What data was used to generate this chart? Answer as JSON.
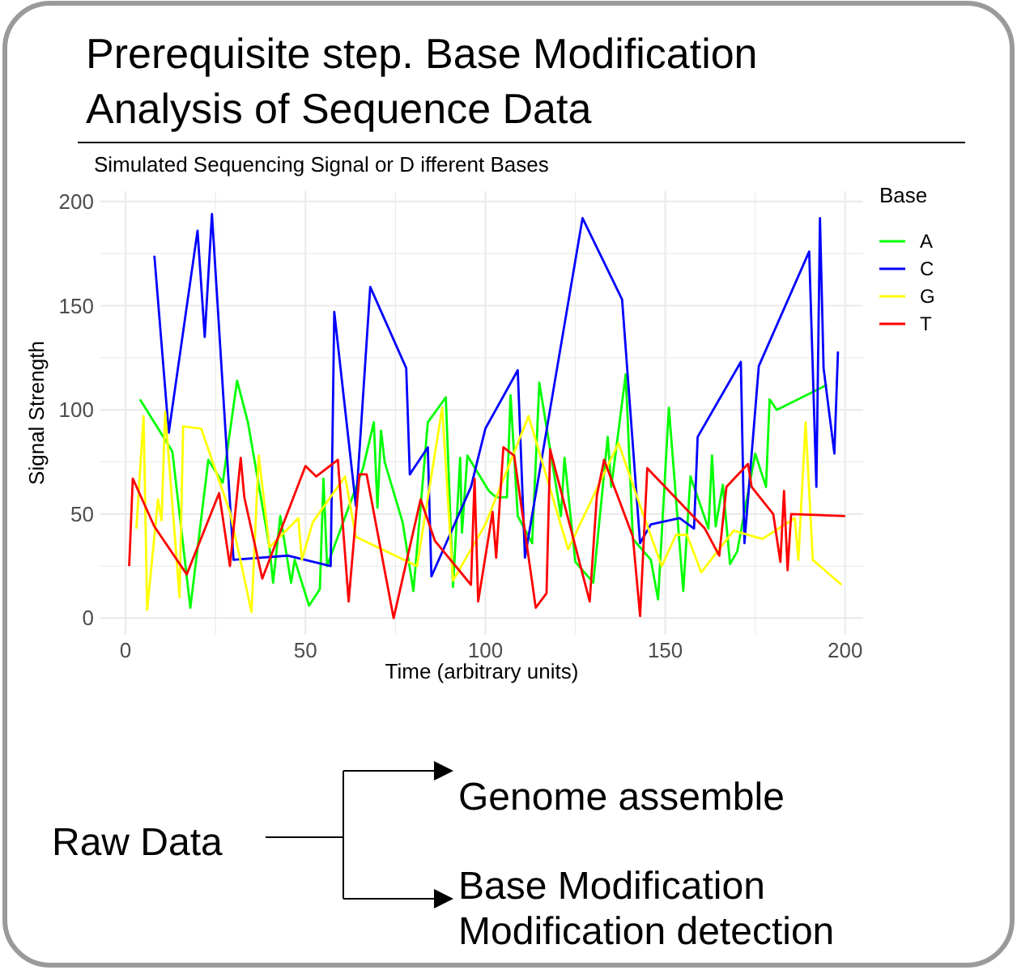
{
  "chart_data": {
    "type": "line",
    "title": "Prerequisite step. Base Modification\nAnalysis of Sequence Data",
    "subtitle": "Simulated Sequencing Signal or D ifferent Bases",
    "xlabel": "Time (arbitrary units)",
    "ylabel": "Signal Strength",
    "legend_title": "Base",
    "legend": "right",
    "grid": true,
    "xlim": [
      -7,
      205
    ],
    "ylim": [
      -8,
      205
    ],
    "xticks": [
      0,
      50,
      100,
      150,
      200
    ],
    "yticks": [
      0,
      50,
      100,
      150,
      200
    ],
    "annotations": [
      "Genome assemble",
      "Raw Data",
      "Base Modification",
      "Modification detection"
    ],
    "series": [
      {
        "name": "A",
        "color": "#00ff00",
        "x": [
          4,
          13,
          18,
          23,
          27,
          31,
          34,
          40,
          41,
          43,
          46,
          47,
          51,
          54,
          55,
          56,
          66,
          69,
          70,
          71,
          72,
          77,
          80,
          84,
          89,
          91,
          93,
          93.5,
          95,
          101,
          103,
          106,
          107,
          109,
          113,
          115,
          118,
          121,
          122,
          125,
          130,
          134,
          135,
          139,
          141,
          146,
          148,
          151,
          155,
          157,
          162,
          163,
          164,
          166,
          168,
          170,
          175,
          178,
          179,
          181,
          195
        ],
        "values": [
          105,
          80,
          5,
          76,
          65,
          114,
          94,
          34,
          17,
          49,
          17,
          28,
          6,
          14,
          67,
          25,
          72,
          94,
          53,
          90,
          75,
          46,
          13,
          94,
          106,
          15,
          77,
          41,
          78,
          61,
          58,
          58,
          107,
          49,
          36,
          113,
          81,
          49,
          77,
          27,
          17,
          87,
          63,
          117,
          38,
          28,
          9,
          101,
          13,
          68,
          43,
          78,
          44,
          64,
          26,
          32,
          79,
          63,
          105,
          100,
          112
        ]
      },
      {
        "name": "C",
        "color": "#0000ff",
        "x": [
          8,
          12,
          20,
          22,
          24,
          30,
          45,
          57,
          58,
          64,
          68,
          78,
          79,
          84,
          85,
          96,
          100,
          109,
          111,
          127,
          138,
          143,
          146,
          154,
          158,
          159,
          171,
          172,
          176,
          190,
          192,
          193,
          194,
          197,
          198
        ],
        "values": [
          174,
          89,
          186,
          135,
          194,
          28,
          30,
          25,
          147,
          54,
          159,
          120,
          69,
          82,
          20,
          63,
          91,
          119,
          29,
          192,
          153,
          36,
          45,
          48,
          43,
          87,
          123,
          36,
          121,
          176,
          63,
          192,
          120,
          79,
          128
        ]
      },
      {
        "name": "G",
        "color": "#ffff00",
        "x": [
          3,
          5,
          6,
          9,
          10,
          11,
          15,
          16,
          21,
          29,
          35,
          37,
          40,
          48,
          49,
          52,
          61,
          64,
          81,
          88,
          91,
          100,
          112,
          123,
          137,
          143,
          149,
          153,
          156,
          160,
          169,
          177,
          186,
          187,
          189,
          191,
          199
        ],
        "values": [
          43,
          97,
          4,
          57,
          47,
          99,
          10,
          92,
          91,
          51,
          3,
          78,
          34,
          48,
          28,
          46,
          68,
          39,
          25,
          101,
          18,
          45,
          97,
          33,
          84,
          54,
          25,
          40,
          40,
          22,
          42,
          38,
          48,
          28,
          94,
          28,
          16
        ]
      },
      {
        "name": "T",
        "color": "#ff0000",
        "x": [
          1,
          2,
          8,
          17,
          26,
          29,
          32,
          33,
          38,
          50,
          53,
          59,
          62,
          65,
          67,
          74.5,
          82,
          86,
          96,
          97,
          98,
          102,
          103,
          105,
          108,
          114,
          117,
          118,
          129,
          131,
          133,
          141,
          143,
          145,
          161,
          165,
          167,
          173,
          174,
          180,
          182,
          183,
          184,
          185,
          200
        ],
        "values": [
          25,
          67,
          44,
          21,
          60,
          25,
          77,
          58,
          19,
          73,
          68,
          76,
          8,
          69,
          69,
          0,
          57,
          37,
          16,
          67,
          8,
          51,
          29,
          82,
          78,
          5,
          12,
          81,
          8,
          59,
          76,
          39,
          1,
          72,
          43,
          30,
          63,
          74,
          63,
          50,
          27,
          61,
          23,
          50,
          49
        ]
      }
    ]
  }
}
